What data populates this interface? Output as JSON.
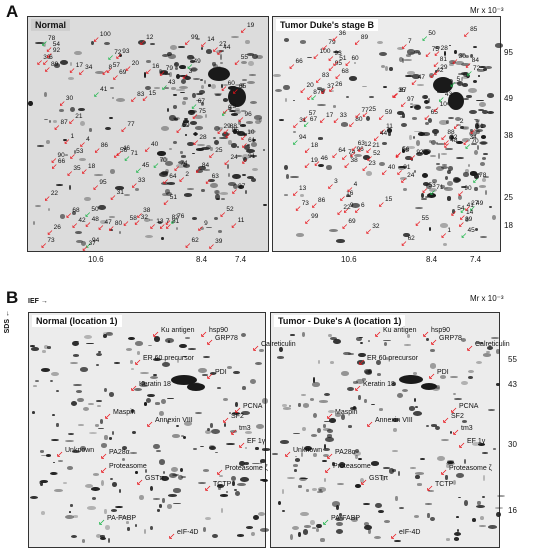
{
  "panel_a": {
    "letter": "A",
    "mr_label": "Mr x 10⁻³",
    "left_title": "Normal",
    "right_title": "Tumor Duke's stage B",
    "x_ticks": [
      "10.6",
      "8.4",
      "7.4"
    ],
    "y_ticks": [
      "95",
      "49",
      "38",
      "25",
      "18"
    ],
    "spot_labels": [
      "43",
      "75",
      "70",
      "71",
      "72",
      "67",
      "88",
      "89",
      "68",
      "69",
      "42",
      "87",
      "17",
      "90",
      "85",
      "64",
      "66",
      "65",
      "54",
      "15",
      "16",
      "63",
      "62",
      "61",
      "50",
      "73",
      "74",
      "76",
      "84",
      "52",
      "93",
      "41",
      "10",
      "9",
      "60",
      "47",
      "53",
      "11",
      "21",
      "29",
      "28",
      "23",
      "48",
      "59",
      "27",
      "79",
      "78",
      "80",
      "95",
      "35",
      "49",
      "51",
      "56",
      "8",
      "97",
      "6",
      "83",
      "7",
      "33",
      "32",
      "24",
      "91",
      "3",
      "34",
      "55",
      "45",
      "39",
      "2",
      "1",
      "30",
      "40",
      "36",
      "46",
      "14",
      "58",
      "19",
      "25",
      "99",
      "94",
      "96",
      "37",
      "38",
      "13",
      "100",
      "26",
      "5",
      "4",
      "86",
      "57",
      "31",
      "12",
      "18",
      "92",
      "22",
      "44",
      "81",
      "82",
      "77",
      "20"
    ]
  },
  "panel_b": {
    "letter": "B",
    "ief_label": "IEF",
    "sds_label": "SDS",
    "mr_label": "Mr x 10⁻³",
    "left_title": "Normal  (location 1)",
    "right_title": "Tumor - Duke's A  (location 1)",
    "y_ticks": [
      "55",
      "43",
      "30",
      "16"
    ],
    "proteins": [
      "Ku antigen",
      "hsp90",
      "GRP78",
      "ER 60 precursor",
      "Calreticulin",
      "PDI",
      "Keratin 18",
      "PCNA",
      "SF2",
      "Maspin",
      "Annexin VIII",
      "tm3",
      "EF 1γ",
      "PA28α",
      "Unknown",
      "Proteasome ζ",
      "Proteasome",
      "GSTπ",
      "TCTP",
      "PA-FABP",
      "eIF-4D"
    ]
  }
}
